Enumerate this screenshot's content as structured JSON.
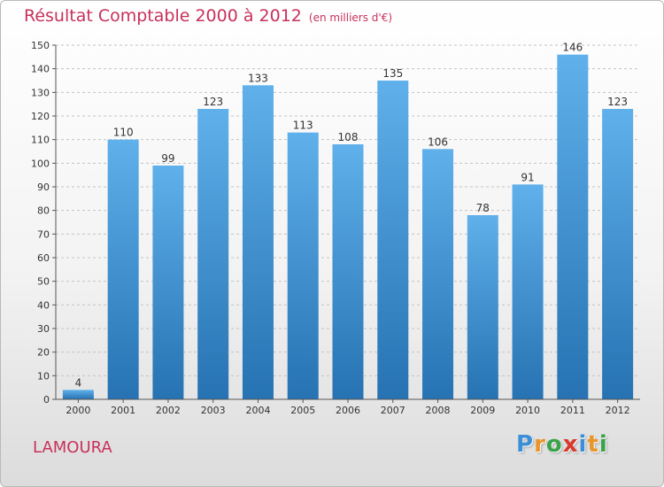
{
  "title": "Résultat Comptable 2000 à 2012",
  "subtitle": "(en milliers d'€)",
  "place": "LAMOURA",
  "logo": {
    "letters": [
      "P",
      "r",
      "o",
      "x",
      "i",
      "t",
      "i"
    ],
    "colors": [
      "#3c8fd6",
      "#e8962a",
      "#3aa34a",
      "#d83a2e",
      "#3c8fd6",
      "#e8962a",
      "#3aa34a"
    ]
  },
  "colors": {
    "title": "#c8315b",
    "bar_top": "#5fb0eb",
    "bar_bottom": "#2672b2",
    "axis": "#555555"
  },
  "chart_data": {
    "type": "bar",
    "categories": [
      "2000",
      "2001",
      "2002",
      "2003",
      "2004",
      "2005",
      "2006",
      "2007",
      "2008",
      "2009",
      "2010",
      "2011",
      "2012"
    ],
    "values": [
      4,
      110,
      99,
      123,
      133,
      113,
      108,
      135,
      106,
      78,
      91,
      146,
      123
    ],
    "ylim": [
      0,
      150
    ],
    "yticks": [
      0,
      10,
      20,
      30,
      40,
      50,
      60,
      70,
      80,
      90,
      100,
      110,
      120,
      130,
      140,
      150
    ],
    "grid": true,
    "data_labels": true
  }
}
